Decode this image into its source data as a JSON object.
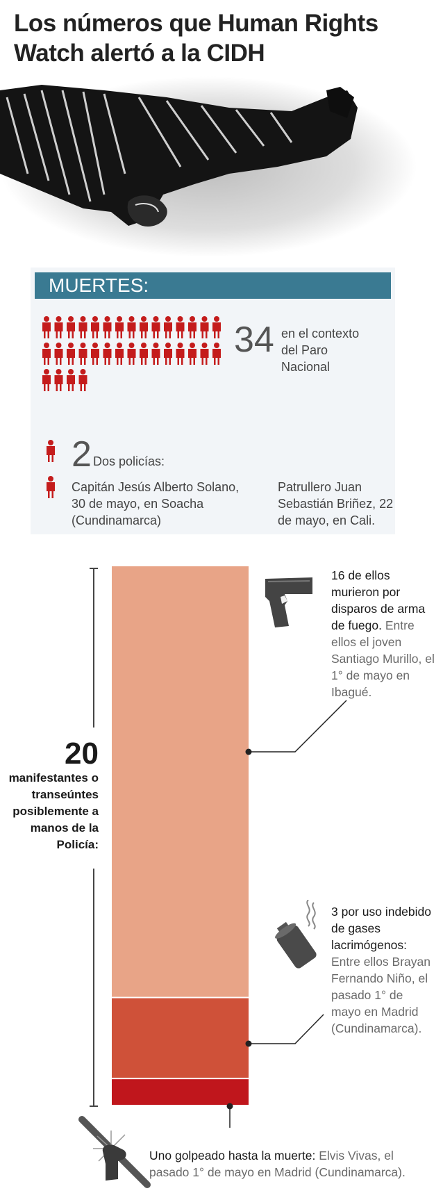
{
  "title": "Los números que Human Rights Watch alertó a la CIDH",
  "muertes": {
    "header": "MUERTES:",
    "total": "34",
    "total_desc": "en el contexto del Paro Nacional",
    "police_count": "2",
    "police_title": "Dos policías:",
    "police_1": "Capitán Jesús Alberto Solano, 30 de mayo, en Soacha (Cundinamarca)",
    "police_2": "Patrullero Juan Sebastián Briñez, 22 de mayo, en Cali."
  },
  "bracket": {
    "number": "20",
    "desc": "manifestantes o transeúntes posiblemente a manos de la Policía:"
  },
  "annotations": {
    "firearm_bold": "16 de ellos murieron por disparos de arma de fuego.",
    "firearm_rest": "Entre ellos el joven Santiago Murillo, el 1° de mayo en Ibagué.",
    "gas_bold": "3 por uso indebido de gases lacrimógenos:",
    "gas_rest": "Entre ellos Brayan Fernando Niño, el pasado 1° de mayo en Madrid (Cundinamarca).",
    "beaten_bold": "Uno golpeado hasta la muerte:",
    "beaten_rest": "Elvis Vivas, el pasado 1° de mayo en Madrid (Cundinamarca)."
  },
  "colors": {
    "firearm": "#e8a487",
    "gas": "#cf5139",
    "beaten": "#c0161c",
    "figure": "#c41c1c",
    "header_bar": "#3a7a92",
    "panel": "#f2f5f8"
  },
  "icons": [
    "pistol-icon",
    "tear-gas-canister-icon",
    "baton-fist-icon",
    "person-icon"
  ],
  "chart_data": {
    "type": "bar",
    "categories": [
      "disparos de arma de fuego",
      "gases lacrimógenos",
      "golpeado hasta la muerte"
    ],
    "values": [
      16,
      3,
      1
    ],
    "total": 20,
    "stacked": true
  }
}
